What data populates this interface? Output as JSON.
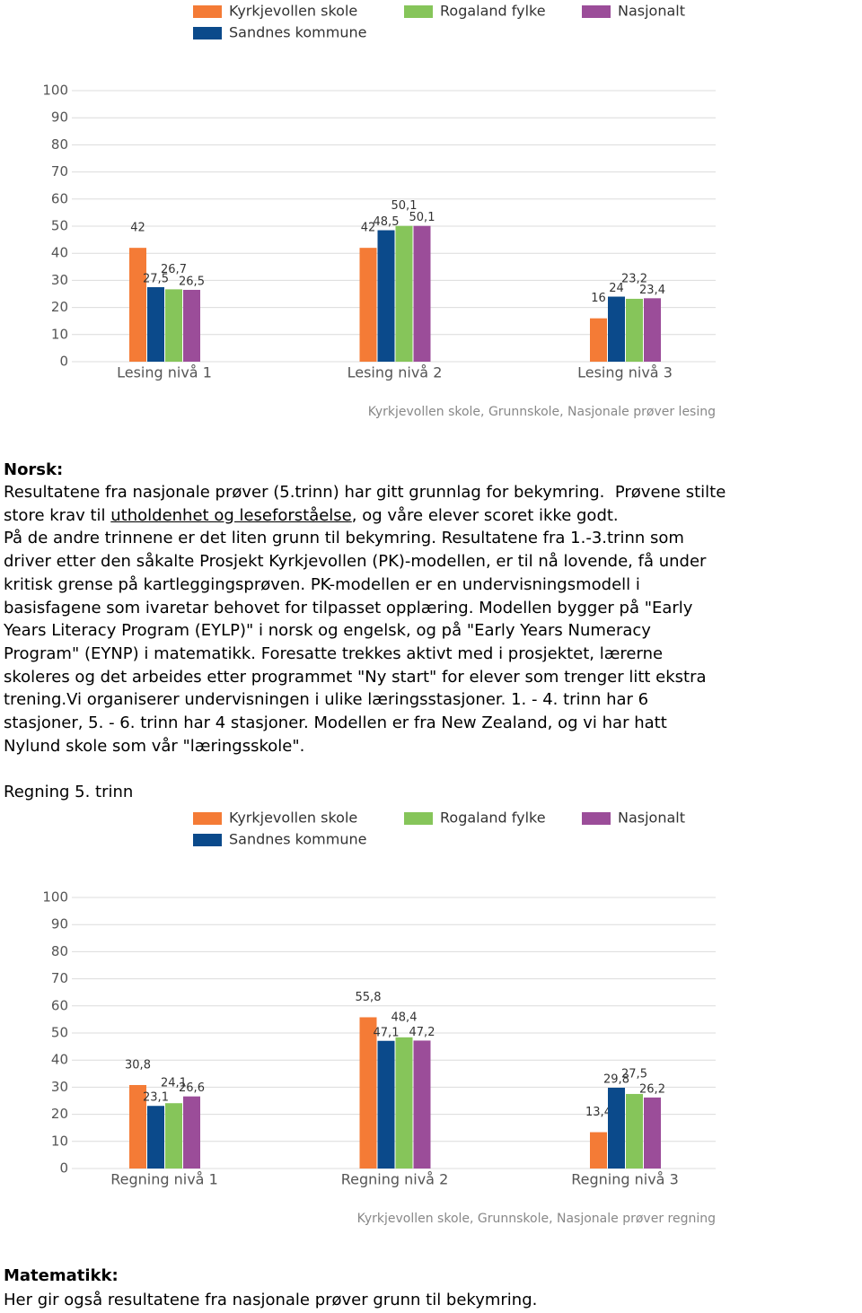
{
  "chart_data": [
    {
      "type": "bar",
      "categories": [
        "Lesing nivå 1",
        "Lesing nivå 2",
        "Lesing nivå 3"
      ],
      "series": [
        {
          "name": "Kyrkjevollen skole",
          "color": "#f47b36",
          "values": [
            42,
            42,
            16
          ],
          "value_labels": [
            "42",
            "42",
            "16"
          ]
        },
        {
          "name": "Sandnes kommune",
          "color": "#0b4a8b",
          "values": [
            27.5,
            48.5,
            24
          ],
          "value_labels": [
            "27,5",
            "48,5",
            "24"
          ]
        },
        {
          "name": "Rogaland fylke",
          "color": "#86c55a",
          "values": [
            26.7,
            50.1,
            23.2
          ],
          "value_labels": [
            "26,7",
            "50,1",
            "23,2"
          ]
        },
        {
          "name": "Nasjonalt",
          "color": "#9b4d99",
          "values": [
            26.5,
            50.1,
            23.4
          ],
          "value_labels": [
            "26,5",
            "50,1",
            "23,4"
          ]
        }
      ],
      "ylim": [
        0,
        100
      ],
      "yticks": [
        0,
        10,
        20,
        30,
        40,
        50,
        60,
        70,
        80,
        90,
        100
      ],
      "grid": true,
      "source": "Kyrkjevollen skole, Grunnskole, Nasjonale prøver lesing"
    },
    {
      "type": "bar",
      "categories": [
        "Regning nivå 1",
        "Regning nivå 2",
        "Regning nivå 3"
      ],
      "series": [
        {
          "name": "Kyrkjevollen skole",
          "color": "#f47b36",
          "values": [
            30.8,
            55.8,
            13.4
          ],
          "value_labels": [
            "30,8",
            "55,8",
            "13,4"
          ]
        },
        {
          "name": "Sandnes kommune",
          "color": "#0b4a8b",
          "values": [
            23.1,
            47.1,
            29.8
          ],
          "value_labels": [
            "23,1",
            "47,1",
            "29,8"
          ]
        },
        {
          "name": "Rogaland fylke",
          "color": "#86c55a",
          "values": [
            24.1,
            48.4,
            27.5
          ],
          "value_labels": [
            "24,1",
            "48,4",
            "27,5"
          ]
        },
        {
          "name": "Nasjonalt",
          "color": "#9b4d99",
          "values": [
            26.6,
            47.2,
            26.2
          ],
          "value_labels": [
            "26,6",
            "47,2",
            "26,2"
          ]
        }
      ],
      "ylim": [
        0,
        100
      ],
      "yticks": [
        0,
        10,
        20,
        30,
        40,
        50,
        60,
        70,
        80,
        90,
        100
      ],
      "grid": true,
      "source": "Kyrkjevollen skole, Grunnskole, Nasjonale prøver regning"
    }
  ],
  "document": {
    "norsk_heading": "Norsk:",
    "norsk_lines": [
      [
        "Resultatene fra nasjonale prøver (5.trinn) har gitt grunnlag for bekymring.  Prøvene stilte"
      ],
      [
        "store krav til ",
        "utholdenhet og leseforståelse",
        ", og våre elever scoret ikke godt."
      ],
      [
        "På de andre trinnene er det liten grunn til bekymring. Resultatene fra 1.-3.trinn som"
      ],
      [
        "driver etter den såkalte Prosjekt Kyrkjevollen (PK)-modellen, er til nå lovende, få under"
      ],
      [
        "kritisk grense på kartleggingsprøven. PK-modellen er en undervisningsmodell i"
      ],
      [
        "basisfagene som ivaretar behovet for tilpasset opplæring. Modellen bygger på \"Early"
      ],
      [
        "Years Literacy Program (EYLP)\" i norsk og engelsk, og på \"Early Years Numeracy"
      ],
      [
        "Program\" (EYNP) i matematikk. Foresatte trekkes aktivt med i prosjektet, lærerne"
      ],
      [
        "skoleres og det arbeides etter programmet \"Ny start\" for elever som trenger litt ekstra"
      ],
      [
        "trening.Vi organiserer undervisningen i ulike læringsstasjoner. 1. - 4. trinn har 6"
      ],
      [
        "stasjoner, 5. - 6. trinn har 4 stasjoner. Modellen er fra New Zealand, og vi har hatt"
      ],
      [
        "Nylund skole som vår \"læringsskole\"."
      ]
    ],
    "regning_heading": "Regning 5. trinn",
    "matematikk_heading": "Matematikk:",
    "matematikk_text": "Her gir også resultatene fra nasjonale prøver grunn til bekymring."
  }
}
